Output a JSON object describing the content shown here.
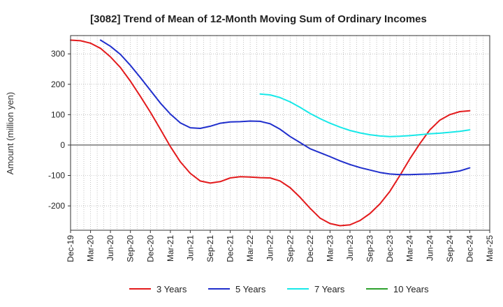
{
  "chart_data": {
    "type": "line",
    "title": "[3082]  Trend of Mean of 12-Month Moving Sum of Ordinary Incomes",
    "xlabel": "",
    "ylabel": "Amount (million yen)",
    "ylim": [
      -280,
      360
    ],
    "yticks": [
      300,
      200,
      100,
      0,
      -100,
      -200
    ],
    "categories": [
      "Dec-19",
      "Mar-20",
      "Jun-20",
      "Sep-20",
      "Dec-20",
      "Mar-21",
      "Jun-21",
      "Sep-21",
      "Dec-21",
      "Mar-22",
      "Jun-22",
      "Sep-22",
      "Dec-22",
      "Mar-23",
      "Jun-23",
      "Sep-23",
      "Dec-23",
      "Mar-24",
      "Jun-24",
      "Sep-24",
      "Dec-24",
      "Mar-25"
    ],
    "series": [
      {
        "name": "3 Years",
        "color": "#e31a1c",
        "x": [
          0,
          0.5,
          1,
          1.5,
          2,
          2.5,
          3,
          3.5,
          4,
          4.5,
          5,
          5.5,
          6,
          6.5,
          7,
          7.5,
          8,
          8.5,
          9,
          9.5,
          10,
          10.5,
          11,
          11.5,
          12,
          12.5,
          13,
          13.5,
          14,
          14.5,
          15,
          15.5,
          16,
          16.5,
          17,
          17.5,
          18,
          18.5,
          19,
          19.5,
          20
        ],
        "values": [
          345,
          343,
          335,
          318,
          290,
          255,
          210,
          160,
          108,
          52,
          -5,
          -55,
          -93,
          -118,
          -125,
          -120,
          -108,
          -104,
          -105,
          -107,
          -108,
          -118,
          -140,
          -172,
          -208,
          -240,
          -258,
          -265,
          -262,
          -248,
          -225,
          -193,
          -152,
          -100,
          -45,
          5,
          50,
          82,
          100,
          110,
          113
        ]
      },
      {
        "name": "5 Years",
        "color": "#1f2ecc",
        "x": [
          1.5,
          2,
          2.5,
          3,
          3.5,
          4,
          4.5,
          5,
          5.5,
          6,
          6.5,
          7,
          7.5,
          8,
          8.5,
          9,
          9.5,
          10,
          10.5,
          11,
          11.5,
          12,
          12.5,
          13,
          13.5,
          14,
          14.5,
          15,
          15.5,
          16,
          16.5,
          17,
          17.5,
          18,
          18.5,
          19,
          19.5,
          20
        ],
        "values": [
          345,
          325,
          298,
          262,
          222,
          180,
          138,
          102,
          73,
          57,
          55,
          62,
          72,
          76,
          77,
          79,
          78,
          70,
          52,
          28,
          8,
          -12,
          -25,
          -38,
          -52,
          -64,
          -74,
          -82,
          -90,
          -95,
          -97,
          -97,
          -96,
          -95,
          -93,
          -90,
          -85,
          -75
        ]
      },
      {
        "name": "7 Years",
        "color": "#17e8e8",
        "x": [
          9.5,
          10,
          10.5,
          11,
          11.5,
          12,
          12.5,
          13,
          13.5,
          14,
          14.5,
          15,
          15.5,
          16,
          16.5,
          17,
          17.5,
          18,
          18.5,
          19,
          19.5,
          20
        ],
        "values": [
          168,
          165,
          156,
          142,
          124,
          104,
          87,
          72,
          59,
          48,
          40,
          34,
          30,
          28,
          29,
          31,
          34,
          37,
          39,
          42,
          45,
          50
        ]
      },
      {
        "name": "10 Years",
        "color": "#2ca02c",
        "x": [],
        "values": []
      }
    ],
    "legend": "bottom"
  }
}
